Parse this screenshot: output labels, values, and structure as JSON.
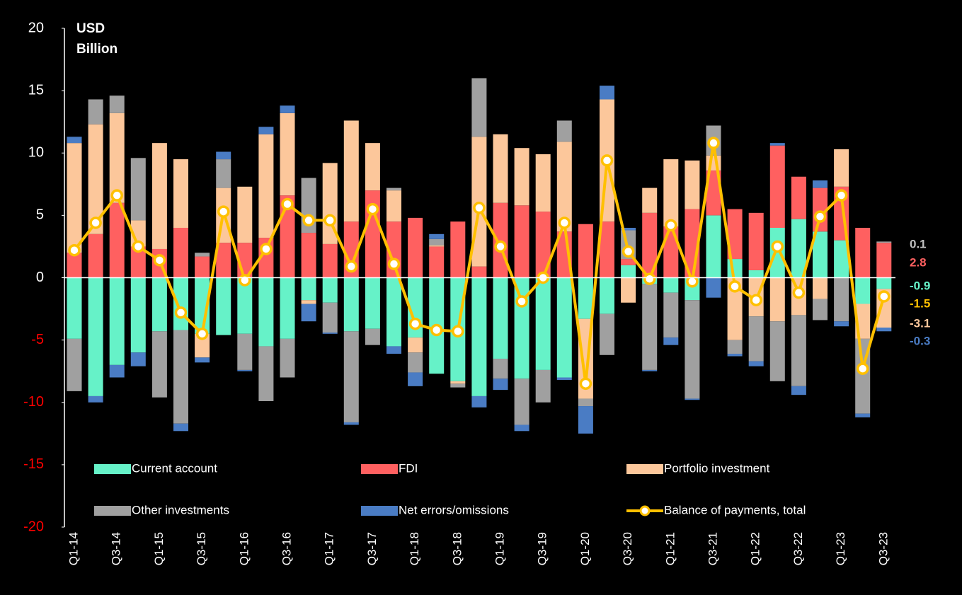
{
  "chart_data": {
    "type": "bar",
    "stacked": true,
    "ylabel": [
      "USD",
      "Billion"
    ],
    "categories": [
      "Q1-14",
      null,
      "Q3-14",
      null,
      "Q1-15",
      null,
      "Q3-15",
      null,
      "Q1-16",
      null,
      "Q3-16",
      null,
      "Q1-17",
      null,
      "Q3-17",
      null,
      "Q1-18",
      null,
      "Q3-18",
      null,
      "Q1-19",
      null,
      "Q3-19",
      null,
      "Q1-20",
      null,
      "Q3-20",
      null,
      "Q1-21",
      null,
      "Q3-21",
      null,
      "Q1-22",
      null,
      "Q3-22",
      null,
      "Q1-23",
      null,
      "Q3-23"
    ],
    "series": [
      {
        "name": "Current account",
        "color": "#66f2c8",
        "values": [
          -4.9,
          -9.5,
          -7,
          -6,
          -4.3,
          -4.2,
          -4.5,
          -4.6,
          -4.5,
          -5.5,
          -4.9,
          -1.8,
          -2,
          -4.3,
          -4.1,
          -5.5,
          -4.8,
          -7.7,
          -8.3,
          -9.5,
          -6.5,
          -8.1,
          -7.4,
          -8,
          -3.3,
          -2.9,
          1.0,
          -0.5,
          -1.2,
          -1.8,
          5,
          1.5,
          0.6,
          4,
          4.7,
          3.7,
          3,
          -2.1,
          -0.9
        ]
      },
      {
        "name": "FDI",
        "color": "#ff6060",
        "values": [
          2.0,
          3.5,
          6,
          2.5,
          2.3,
          4,
          1.7,
          2.8,
          2.8,
          3.2,
          6.6,
          3.6,
          2.7,
          4.5,
          7,
          4.5,
          4.8,
          2.5,
          4.5,
          0.9,
          6,
          5.8,
          5.3,
          3.7,
          4.3,
          4.5,
          0.5,
          5.2,
          4.1,
          5.5,
          3.6,
          4.0,
          4.6,
          6.6,
          3.4,
          3.5,
          4.3,
          4,
          2.8
        ]
      },
      {
        "name": "Portfolio investment",
        "color": "#fcc79b",
        "values": [
          8.8,
          8.8,
          7.2,
          2.1,
          8.5,
          5.5,
          -1.9,
          4.4,
          4.5,
          8.3,
          6.6,
          -0.3,
          6.5,
          8.1,
          3.8,
          2.5,
          -1.2,
          0.1,
          -0.2,
          10.4,
          5.5,
          4.6,
          4.6,
          7.2,
          -6.4,
          9.8,
          -2.0,
          2.0,
          5.4,
          3.9,
          1.2,
          -5.0,
          -3.1,
          -3.5,
          -3,
          -1.7,
          3,
          -2.8,
          -3.1
        ]
      },
      {
        "name": "Other investments",
        "color": "#a0a0a0",
        "values": [
          -4.2,
          2.0,
          1.4,
          5.0,
          -5.3,
          -7.5,
          0.3,
          2.3,
          -2.9,
          -4.4,
          -3.1,
          4.4,
          -2.4,
          -7.3,
          -1.3,
          0.2,
          -1.6,
          0.5,
          -0.3,
          4.7,
          -1.6,
          -3.7,
          -2.6,
          1.7,
          -0.6,
          -3.3,
          2.3,
          -6.9,
          -3.6,
          -7.9,
          2.4,
          -1.1,
          -3.6,
          -4.8,
          -5.7,
          -1.7,
          -3.5,
          -6.0,
          0.1
        ]
      },
      {
        "name": "Net errors/omissions",
        "color": "#4a7cc4",
        "values": [
          0.5,
          -0.5,
          -1,
          -1.1,
          0,
          -0.6,
          -0.4,
          0.6,
          -0.1,
          0.6,
          0.6,
          -1.4,
          -0.1,
          -0.2,
          0,
          -0.6,
          -1.1,
          0.4,
          0,
          -0.9,
          -0.9,
          -0.5,
          0,
          -0.2,
          -2.2,
          1.1,
          0.2,
          -0.1,
          -0.6,
          -0.1,
          -1.6,
          -0.2,
          -0.4,
          0.2,
          -0.7,
          0.6,
          -0.4,
          -0.3,
          -0.3
        ]
      },
      {
        "name": "Balance of payments, total",
        "color": "#ffc000",
        "type": "line",
        "marker_fill": "#ffffff",
        "values": [
          2.2,
          4.4,
          6.6,
          2.5,
          1.4,
          -2.8,
          -4.5,
          5.3,
          -0.2,
          2.3,
          5.9,
          4.6,
          4.6,
          0.9,
          5.5,
          1.1,
          -3.7,
          -4.2,
          -4.3,
          5.6,
          2.5,
          -1.9,
          0.0,
          4.4,
          -8.5,
          9.4,
          2.1,
          -0.1,
          4.2,
          -0.3,
          10.8,
          -0.7,
          -1.8,
          2.5,
          -1.2,
          4.9,
          6.6,
          -7.3,
          -1.5
        ]
      }
    ],
    "annotations": [
      {
        "text": "0.1",
        "color": "#c0c0c0"
      },
      {
        "text": "2.8",
        "color": "#ff6060"
      },
      {
        "text": "-0.9",
        "color": "#66f2c8"
      },
      {
        "text": "-1.5",
        "color": "#ffc000"
      },
      {
        "text": "-3.1",
        "color": "#fcc79b"
      },
      {
        "text": "-0.3",
        "color": "#4a7cc4"
      }
    ],
    "ylim": [
      -20,
      20
    ],
    "yticks": [
      -20,
      -15,
      -10,
      -5,
      0,
      5,
      10,
      15,
      20
    ],
    "tick_color": "#ffffff",
    "negative_tick_color": "#ff0000",
    "legend": "lower",
    "background": "#000000"
  }
}
